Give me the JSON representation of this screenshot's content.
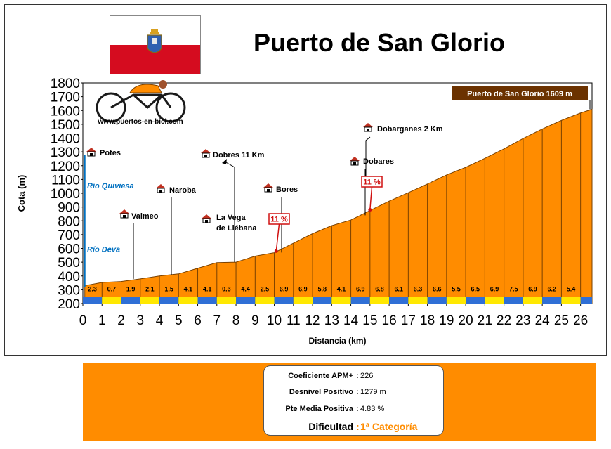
{
  "header": {
    "title": "Puerto de San Glorio"
  },
  "flag": {
    "name": "cantabria-flag",
    "colors": {
      "top": "#ffffff",
      "bottom": "#d50c1f"
    }
  },
  "logo": {
    "url_text": "www.puertos-en-bici.com",
    "icon": "cyclist-icon"
  },
  "colors": {
    "area": "#ff8c00",
    "area_stroke": "#7a4100",
    "grid": "#000000",
    "band_blue": "#2f6fd6",
    "band_yellow": "#ffe800",
    "summit_box": "#6b3200",
    "gradient_label": "#d01010",
    "river": "#0070c0",
    "summary_bg": "#ff8c00",
    "category": "#ff8c00"
  },
  "chart_data": {
    "type": "area",
    "title": "Puerto de San Glorio",
    "xlabel": "Distancia (km)",
    "ylabel": "Cota (m)",
    "xlim": [
      0,
      26.6
    ],
    "ylim": [
      200,
      1800
    ],
    "x_ticks": [
      0,
      1,
      2,
      3,
      4,
      5,
      6,
      7,
      8,
      9,
      10,
      11,
      12,
      13,
      14,
      15,
      16,
      17,
      18,
      19,
      20,
      21,
      22,
      23,
      24,
      25,
      26
    ],
    "y_ticks": [
      200,
      300,
      400,
      500,
      600,
      700,
      800,
      900,
      1000,
      1100,
      1200,
      1300,
      1400,
      1500,
      1600,
      1700,
      1800
    ],
    "grid": true,
    "profile": [
      {
        "x": 0.1,
        "y": 330
      },
      {
        "x": 1,
        "y": 353
      },
      {
        "x": 2,
        "y": 360
      },
      {
        "x": 3,
        "y": 379
      },
      {
        "x": 4,
        "y": 400
      },
      {
        "x": 5,
        "y": 415
      },
      {
        "x": 6,
        "y": 456
      },
      {
        "x": 7,
        "y": 497
      },
      {
        "x": 8,
        "y": 500
      },
      {
        "x": 9,
        "y": 544
      },
      {
        "x": 10,
        "y": 569
      },
      {
        "x": 11,
        "y": 638
      },
      {
        "x": 12,
        "y": 707
      },
      {
        "x": 13,
        "y": 765
      },
      {
        "x": 14,
        "y": 806
      },
      {
        "x": 15,
        "y": 875
      },
      {
        "x": 16,
        "y": 943
      },
      {
        "x": 17,
        "y": 1004
      },
      {
        "x": 18,
        "y": 1067
      },
      {
        "x": 19,
        "y": 1133
      },
      {
        "x": 20,
        "y": 1188
      },
      {
        "x": 21,
        "y": 1253
      },
      {
        "x": 22,
        "y": 1322
      },
      {
        "x": 23,
        "y": 1397
      },
      {
        "x": 24,
        "y": 1466
      },
      {
        "x": 25,
        "y": 1528
      },
      {
        "x": 26,
        "y": 1582
      },
      {
        "x": 26.6,
        "y": 1609
      }
    ],
    "segment_gradients": [
      "2.3",
      "0.7",
      "1.9",
      "2.1",
      "1.5",
      "4.1",
      "4.1",
      "0.3",
      "4.4",
      "2.5",
      "6.9",
      "6.9",
      "5.8",
      "4.1",
      "6.9",
      "6.8",
      "6.1",
      "6.3",
      "6.6",
      "5.5",
      "6.5",
      "6.9",
      "7.5",
      "6.9",
      "6.2",
      "5.4"
    ],
    "summit_label": "Puerto de San Glorio 1609 m",
    "places": [
      {
        "name": "Potes",
        "x": 0.3,
        "y": 1315,
        "line_to": null
      },
      {
        "name": "Valmeo",
        "x": 2.2,
        "y": 860,
        "line_to": 2.6
      },
      {
        "name": "Naroba",
        "x": 4.0,
        "y": 1040,
        "line_to": 4.6
      },
      {
        "name": "Dobres 11 Km",
        "x": 6.3,
        "y": 1300,
        "line_to": null
      },
      {
        "name": "La Vega",
        "x": 6.3,
        "y": 820,
        "line_to": null
      },
      {
        "name": "de Liébana",
        "x": null,
        "y": null,
        "line_to": null
      },
      {
        "name": "Bores",
        "x": 9.6,
        "y": 1040,
        "line_to": null
      },
      {
        "name": "Dobares",
        "x": 14.2,
        "y": 1245,
        "line_to": null
      },
      {
        "name": "Dobarganes 2 Km",
        "x": 14.9,
        "y": 1500,
        "line_to": null
      }
    ],
    "rivers": [
      {
        "name": "Río Quiviesa",
        "y": 1060
      },
      {
        "name": "Río Deva",
        "y": 600
      }
    ],
    "gradient_markers": [
      {
        "label": "11 %",
        "x": 10.1,
        "y": 580
      },
      {
        "label": "11 %",
        "x": 15.0,
        "y": 880
      }
    ]
  },
  "summary": {
    "rows": [
      {
        "key": "Coeficiente APM+",
        "value": "226"
      },
      {
        "key": "Desnivel Positivo",
        "value": "1279 m"
      },
      {
        "key": "Pte Media Positiva",
        "value": "4.83 %"
      }
    ],
    "difficulty_key": "Dificultad",
    "difficulty_value": "1ª Categoría"
  }
}
